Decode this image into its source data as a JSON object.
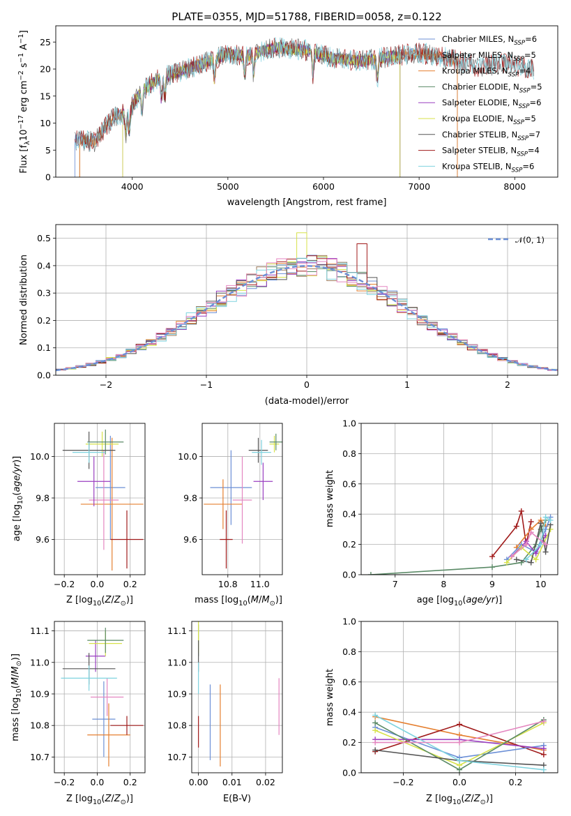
{
  "figure": {
    "title": "PLATE=0355, MJD=51788, FIBERID=0058, z=0.122"
  },
  "colors": {
    "Chabrier MILES": "#6b8fd6",
    "Salpeter MILES": "#9a7a5a",
    "Kroupa MILES": "#e57f2f",
    "Chabrier ELODIE": "#5a8a66",
    "Salpeter ELODIE": "#9a3fc0",
    "Kroupa ELODIE": "#d7e24a",
    "Chabrier STELIB": "#555555",
    "Salpeter STELIB": "#a01a1a",
    "Kroupa STELIB": "#7fd3df",
    "pink": "#e486c0",
    "normal": "#6b8fd6"
  },
  "chart_data": [
    {
      "id": "spectrum",
      "type": "line",
      "title": "PLATE=0355, MJD=51788, FIBERID=0058, z=0.122",
      "xlabel": "wavelength [Angstrom, rest frame]",
      "ylabel": "Flux [f_λ10⁻¹⁷ erg cm⁻² s⁻¹ A⁻¹]",
      "xlim": [
        3200,
        8450
      ],
      "ylim": [
        0,
        28
      ],
      "xticks": [
        4000,
        5000,
        6000,
        7000,
        8000
      ],
      "yticks": [
        0,
        5,
        10,
        15,
        20,
        25
      ],
      "grid": false,
      "legend_position": "top-right",
      "legend": [
        {
          "label": "Chabrier MILES, N",
          "sub": "SSP",
          "tail": "=6"
        },
        {
          "label": "Salpeter MILES, N",
          "sub": "SSP",
          "tail": "=5"
        },
        {
          "label": "Kroupa MILES, N",
          "sub": "SSP",
          "tail": "=4"
        },
        {
          "label": "Chabrier ELODIE, N",
          "sub": "SSP",
          "tail": "=5"
        },
        {
          "label": "Salpeter ELODIE, N",
          "sub": "SSP",
          "tail": "=6"
        },
        {
          "label": "Kroupa ELODIE, N",
          "sub": "SSP",
          "tail": "=5"
        },
        {
          "label": "Chabrier STELIB, N",
          "sub": "SSP",
          "tail": "=7"
        },
        {
          "label": "Salpeter STELIB, N",
          "sub": "SSP",
          "tail": "=4"
        },
        {
          "label": "Kroupa STELIB, N",
          "sub": "SSP",
          "tail": "=6"
        }
      ],
      "continuum": {
        "x": [
          3380,
          3600,
          3800,
          3950,
          4100,
          4300,
          4500,
          4800,
          5000,
          5200,
          5500,
          5800,
          6100,
          6400,
          6700,
          7000,
          7300,
          7600,
          7900,
          8200
        ],
        "y": [
          7.0,
          6.5,
          11.0,
          12.0,
          16.0,
          18.5,
          19.5,
          21.5,
          22.8,
          22.5,
          24.0,
          23.5,
          22.0,
          21.5,
          22.3,
          23.0,
          22.0,
          20.5,
          21.0,
          20.0
        ]
      },
      "model_ranges": {
        "Chabrier MILES": [
          3400,
          7400
        ],
        "Salpeter MILES": [
          3450,
          7400
        ],
        "Kroupa MILES": [
          3450,
          7400
        ],
        "Chabrier ELODIE": [
          3900,
          6800
        ],
        "Salpeter ELODIE": [
          3900,
          6800
        ],
        "Kroupa ELODIE": [
          3900,
          6800
        ],
        "Chabrier STELIB": [
          3400,
          8200
        ],
        "Salpeter STELIB": [
          3400,
          8200
        ],
        "Kroupa STELIB": [
          3400,
          8200
        ]
      }
    },
    {
      "id": "residuals",
      "type": "bar",
      "xlabel": "(data-model)/error",
      "ylabel": "Normed distribution",
      "xlim": [
        -2.5,
        2.5
      ],
      "ylim": [
        0,
        0.55
      ],
      "xticks": [
        -2,
        -1,
        0,
        1,
        2
      ],
      "yticks": [
        0.0,
        0.1,
        0.2,
        0.3,
        0.4,
        0.5
      ],
      "grid": true,
      "legend_position": "top-right",
      "legend": [
        {
          "label": "𝒩(0, 1)"
        }
      ],
      "bin_width": 0.1,
      "special_bins": {
        "Kroupa ELODIE": {
          "x": -0.1,
          "y": 0.52
        },
        "Salpeter STELIB": {
          "x": 0.5,
          "y": 0.48
        }
      }
    },
    {
      "id": "age_vs_Z",
      "type": "scatter",
      "xlabel": "Z [log10(Z/Z⊙)]",
      "ylabel": "age  [log10(age/yr)]",
      "xlim": [
        -0.26,
        0.29
      ],
      "ylim": [
        9.43,
        10.16
      ],
      "xticks": [
        -0.2,
        0.0,
        0.2
      ],
      "yticks": [
        9.6,
        9.8,
        10.0
      ],
      "grid": true,
      "points": [
        {
          "c": "Chabrier MILES",
          "x": 0.08,
          "y": 9.85,
          "xe": 0.09,
          "ye": 0.25
        },
        {
          "c": "Kroupa MILES",
          "x": 0.09,
          "y": 9.77,
          "xe": 0.19,
          "ye": 0.32
        },
        {
          "c": "pink",
          "x": 0.04,
          "y": 9.79,
          "xe": 0.09,
          "ye": 0.24
        },
        {
          "c": "Salpeter ELODIE",
          "x": -0.02,
          "y": 9.88,
          "xe": 0.1,
          "ye": 0.12
        },
        {
          "c": "Kroupa ELODIE",
          "x": 0.03,
          "y": 10.06,
          "xe": 0.1,
          "ye": 0.06
        },
        {
          "c": "Chabrier ELODIE",
          "x": 0.05,
          "y": 10.07,
          "xe": 0.11,
          "ye": 0.06
        },
        {
          "c": "Chabrier STELIB",
          "x": -0.05,
          "y": 10.03,
          "xe": 0.16,
          "ye": 0.09
        },
        {
          "c": "Kroupa STELIB",
          "x": -0.05,
          "y": 10.02,
          "xe": 0.1,
          "ye": 0.05
        },
        {
          "c": "Salpeter STELIB",
          "x": 0.18,
          "y": 9.6,
          "xe": 0.1,
          "ye": 0.14
        }
      ]
    },
    {
      "id": "age_vs_mass",
      "type": "scatter",
      "xlabel": "mass [log10(M/M⊙)]",
      "ylabel": "",
      "xlim": [
        10.64,
        11.14
      ],
      "ylim": [
        9.43,
        10.16
      ],
      "xticks": [
        10.8,
        11.0
      ],
      "yticks": [
        9.6,
        9.8,
        10.0
      ],
      "grid": true,
      "points": [
        {
          "c": "Chabrier MILES",
          "x": 10.82,
          "y": 9.85,
          "xe": 0.13,
          "ye": 0.18
        },
        {
          "c": "Kroupa MILES",
          "x": 10.77,
          "y": 9.77,
          "xe": 0.12,
          "ye": 0.12
        },
        {
          "c": "pink",
          "x": 10.89,
          "y": 9.79,
          "xe": 0.06,
          "ye": 0.21
        },
        {
          "c": "Salpeter ELODIE",
          "x": 11.02,
          "y": 9.88,
          "xe": 0.06,
          "ye": 0.09
        },
        {
          "c": "Kroupa ELODIE",
          "x": 11.09,
          "y": 10.06,
          "xe": 0.03,
          "ye": 0.04
        },
        {
          "c": "Chabrier ELODIE",
          "x": 11.1,
          "y": 10.07,
          "xe": 0.04,
          "ye": 0.04
        },
        {
          "c": "Chabrier STELIB",
          "x": 10.99,
          "y": 10.03,
          "xe": 0.06,
          "ye": 0.06
        },
        {
          "c": "Kroupa STELIB",
          "x": 11.01,
          "y": 10.02,
          "xe": 0.06,
          "ye": 0.06
        },
        {
          "c": "Salpeter STELIB",
          "x": 10.79,
          "y": 9.6,
          "xe": 0.04,
          "ye": 0.14
        }
      ]
    },
    {
      "id": "weight_vs_age",
      "type": "line",
      "xlabel": "age  [log10(age/yr)]",
      "ylabel": "mass weight",
      "xlim": [
        6.3,
        10.35
      ],
      "ylim": [
        0,
        1.0
      ],
      "xticks": [
        7,
        8,
        9,
        10
      ],
      "yticks": [
        0.0,
        0.2,
        0.4,
        0.6,
        0.8,
        1.0
      ],
      "grid": true,
      "series": [
        {
          "c": "Chabrier ELODIE",
          "x": [
            6.5,
            9.0,
            9.6,
            9.9,
            10.0,
            10.1
          ],
          "y": [
            0.0,
            0.05,
            0.08,
            0.2,
            0.3,
            0.36
          ]
        },
        {
          "c": "Salpeter STELIB",
          "x": [
            9.0,
            9.5,
            9.6,
            9.7,
            9.8
          ],
          "y": [
            0.12,
            0.32,
            0.42,
            0.2,
            0.35
          ]
        },
        {
          "c": "Kroupa MILES",
          "x": [
            9.5,
            9.8,
            10.0,
            10.1
          ],
          "y": [
            0.18,
            0.3,
            0.36,
            0.32
          ]
        },
        {
          "c": "Chabrier MILES",
          "x": [
            9.3,
            9.6,
            9.9,
            10.1,
            10.2
          ],
          "y": [
            0.1,
            0.2,
            0.15,
            0.3,
            0.38
          ]
        },
        {
          "c": "Salpeter ELODIE",
          "x": [
            9.4,
            9.7,
            9.9,
            10.1
          ],
          "y": [
            0.12,
            0.22,
            0.14,
            0.26
          ]
        },
        {
          "c": "Kroupa ELODIE",
          "x": [
            9.3,
            9.6,
            9.9,
            10.2
          ],
          "y": [
            0.08,
            0.18,
            0.1,
            0.3
          ]
        },
        {
          "c": "Chabrier STELIB",
          "x": [
            9.5,
            9.8,
            10.0,
            10.1,
            10.2
          ],
          "y": [
            0.1,
            0.08,
            0.34,
            0.15,
            0.33
          ]
        },
        {
          "c": "Kroupa STELIB",
          "x": [
            9.7,
            10.0,
            10.1,
            10.2
          ],
          "y": [
            0.1,
            0.2,
            0.38,
            0.36
          ]
        },
        {
          "c": "pink",
          "x": [
            9.4,
            9.7,
            9.8,
            10.1
          ],
          "y": [
            0.12,
            0.2,
            0.28,
            0.2
          ]
        }
      ]
    },
    {
      "id": "mass_vs_Z",
      "type": "scatter",
      "xlabel": "Z [log10(Z/Z⊙)]",
      "ylabel": "mass [log10(M/M⊙)]",
      "xlim": [
        -0.26,
        0.29
      ],
      "ylim": [
        10.65,
        11.13
      ],
      "xticks": [
        -0.2,
        0.0,
        0.2
      ],
      "yticks": [
        10.7,
        10.8,
        10.9,
        11.0,
        11.1
      ],
      "grid": true,
      "points": [
        {
          "c": "Chabrier MILES",
          "x": 0.04,
          "y": 10.82,
          "xe": 0.07,
          "ye": 0.12
        },
        {
          "c": "Kroupa MILES",
          "x": 0.07,
          "y": 10.77,
          "xe": 0.13,
          "ye": 0.1
        },
        {
          "c": "pink",
          "x": 0.06,
          "y": 10.89,
          "xe": 0.1,
          "ye": 0.06
        },
        {
          "c": "Salpeter ELODIE",
          "x": -0.01,
          "y": 11.02,
          "xe": 0.06,
          "ye": 0.05
        },
        {
          "c": "Kroupa ELODIE",
          "x": 0.05,
          "y": 11.06,
          "xe": 0.1,
          "ye": 0.04
        },
        {
          "c": "Chabrier ELODIE",
          "x": 0.05,
          "y": 11.07,
          "xe": 0.11,
          "ye": 0.04
        },
        {
          "c": "Chabrier STELIB",
          "x": -0.05,
          "y": 10.98,
          "xe": 0.16,
          "ye": 0.05
        },
        {
          "c": "Kroupa STELIB",
          "x": -0.05,
          "y": 10.95,
          "xe": 0.17,
          "ye": 0.04
        },
        {
          "c": "Salpeter STELIB",
          "x": 0.18,
          "y": 10.8,
          "xe": 0.1,
          "ye": 0.03
        }
      ]
    },
    {
      "id": "mass_vs_ebv",
      "type": "scatter",
      "xlabel": "E(B-V)",
      "ylabel": "",
      "xlim": [
        -0.002,
        0.025
      ],
      "ylim": [
        10.65,
        11.13
      ],
      "xticks": [
        0.0,
        0.01,
        0.02
      ],
      "yticks": [
        10.7,
        10.8,
        10.9,
        11.0,
        11.1
      ],
      "grid": true,
      "points": [
        {
          "c": "Chabrier MILES",
          "x": 0.0035,
          "y": 10.81,
          "xe": 0.0,
          "ye": 0.12
        },
        {
          "c": "Kroupa MILES",
          "x": 0.0065,
          "y": 10.8,
          "xe": 0.0,
          "ye": 0.13
        },
        {
          "c": "pink",
          "x": 0.024,
          "y": 10.86,
          "xe": 0.0,
          "ye": 0.09
        },
        {
          "c": "Salpeter STELIB",
          "x": 0.0,
          "y": 10.78,
          "xe": 0.0,
          "ye": 0.05
        },
        {
          "c": "Chabrier ELODIE",
          "x": 0.0,
          "y": 11.07,
          "xe": 0.0,
          "ye": 0.05
        },
        {
          "c": "Kroupa ELODIE",
          "x": 0.0,
          "y": 11.08,
          "xe": 0.0,
          "ye": 0.05
        },
        {
          "c": "Chabrier STELIB",
          "x": 0.0,
          "y": 11.02,
          "xe": 0.0,
          "ye": 0.05
        },
        {
          "c": "Kroupa STELIB",
          "x": 0.0,
          "y": 10.95,
          "xe": 0.0,
          "ye": 0.05
        }
      ]
    },
    {
      "id": "weight_vs_Z",
      "type": "line",
      "xlabel": "Z [log10(Z/Z⊙)]",
      "ylabel": "mass weight",
      "xlim": [
        -0.35,
        0.35
      ],
      "ylim": [
        0,
        1.0
      ],
      "xticks": [
        -0.2,
        0.0,
        0.2
      ],
      "yticks": [
        0.0,
        0.2,
        0.4,
        0.6,
        0.8,
        1.0
      ],
      "grid": true,
      "series": [
        {
          "c": "Kroupa MILES",
          "x": [
            -0.3,
            0.0,
            0.3
          ],
          "y": [
            0.37,
            0.25,
            0.15
          ]
        },
        {
          "c": "Salpeter STELIB",
          "x": [
            -0.3,
            0.0,
            0.3
          ],
          "y": [
            0.14,
            0.32,
            0.12
          ]
        },
        {
          "c": "Chabrier MILES",
          "x": [
            -0.3,
            0.0,
            0.3
          ],
          "y": [
            0.3,
            0.1,
            0.18
          ]
        },
        {
          "c": "Salpeter ELODIE",
          "x": [
            -0.3,
            0.0,
            0.3
          ],
          "y": [
            0.22,
            0.22,
            0.16
          ]
        },
        {
          "c": "Kroupa ELODIE",
          "x": [
            -0.3,
            0.0,
            0.3
          ],
          "y": [
            0.28,
            0.05,
            0.33
          ]
        },
        {
          "c": "Chabrier ELODIE",
          "x": [
            -0.3,
            0.0,
            0.3
          ],
          "y": [
            0.33,
            0.02,
            0.35
          ]
        },
        {
          "c": "Chabrier STELIB",
          "x": [
            -0.3,
            0.0,
            0.3
          ],
          "y": [
            0.15,
            0.08,
            0.05
          ]
        },
        {
          "c": "Kroupa STELIB",
          "x": [
            -0.3,
            0.0,
            0.3
          ],
          "y": [
            0.38,
            0.08,
            0.02
          ]
        },
        {
          "c": "pink",
          "x": [
            -0.3,
            0.0,
            0.3
          ],
          "y": [
            0.2,
            0.2,
            0.34
          ]
        }
      ]
    }
  ]
}
